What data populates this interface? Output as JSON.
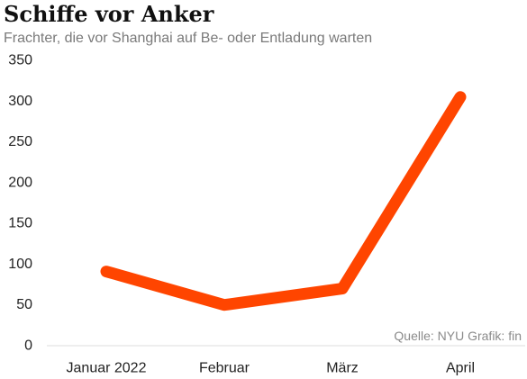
{
  "header": {
    "title": "Schiffe vor Anker",
    "subtitle": "Frachter, die vor Shanghai auf Be- oder Entladung warten"
  },
  "source": "Quelle: NYU Grafik: fin",
  "colors": {
    "line": "#ff4500",
    "axis": "#dddddd",
    "text": "#222222",
    "muted": "#8a8a8a"
  },
  "chart_data": {
    "type": "line",
    "title": "Schiffe vor Anker",
    "subtitle": "Frachter, die vor Shanghai auf Be- oder Entladung warten",
    "categories": [
      "Januar 2022",
      "Februar",
      "März",
      "April"
    ],
    "series": [
      {
        "values": [
          91,
          50,
          70,
          305
        ]
      }
    ],
    "ylim": [
      0,
      350
    ],
    "yticks": [
      0,
      50,
      100,
      150,
      200,
      250,
      300,
      350
    ],
    "grid": false,
    "xlabel": "",
    "ylabel": ""
  }
}
